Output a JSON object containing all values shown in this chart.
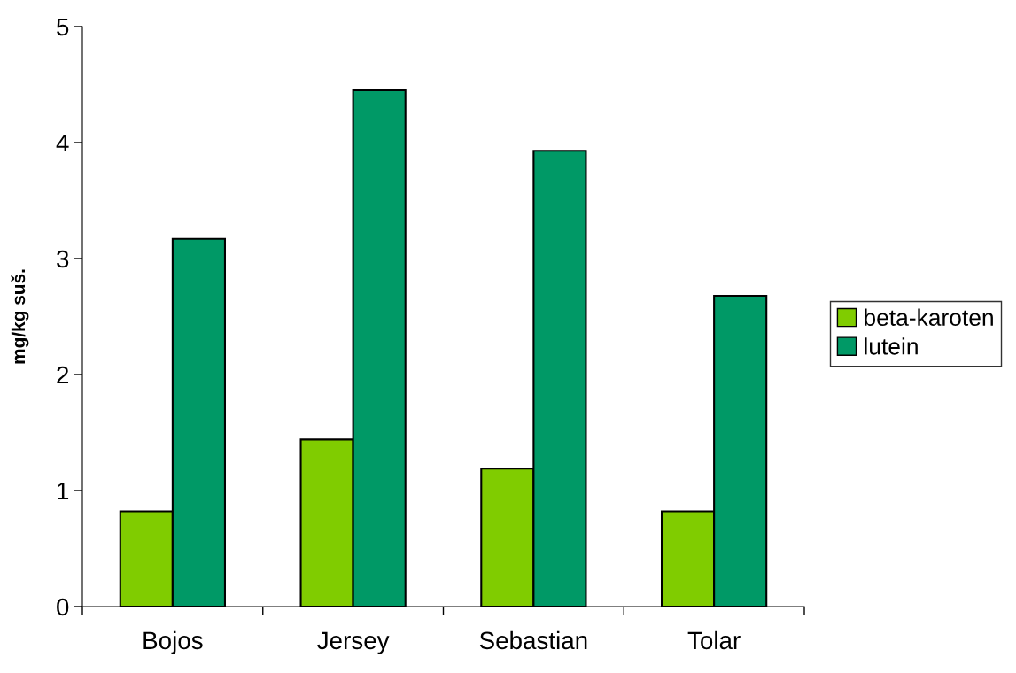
{
  "chart_data": {
    "type": "bar",
    "ylabel": "mg/kg suš.",
    "categories": [
      "Bojos",
      "Jersey",
      "Sebastian",
      "Tolar"
    ],
    "series": [
      {
        "name": "beta-karoten",
        "color": "#80cc00",
        "values": [
          0.82,
          1.44,
          1.19,
          0.82
        ]
      },
      {
        "name": "lutein",
        "color": "#009966",
        "values": [
          3.17,
          4.45,
          3.93,
          2.68
        ]
      }
    ],
    "ylim": [
      0,
      5
    ],
    "yticks": [
      0,
      1,
      2,
      3,
      4,
      5
    ],
    "grid": false,
    "legend": "right"
  }
}
